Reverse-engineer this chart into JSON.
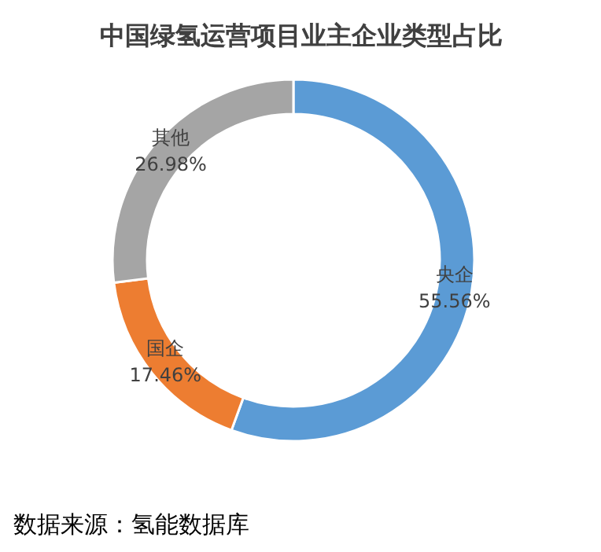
{
  "chart_data": {
    "type": "donut",
    "title": "中国绿氢运营项目业主企业类型占比",
    "categories": [
      "央企",
      "国企",
      "其他"
    ],
    "values": [
      55.56,
      17.46,
      26.98
    ],
    "colors": [
      "#5b9bd5",
      "#ed7d31",
      "#a5a5a5"
    ],
    "value_labels": [
      "55.56%",
      "17.46%",
      "26.98%"
    ],
    "annotations": [
      "数据来源：氢能数据库"
    ]
  }
}
